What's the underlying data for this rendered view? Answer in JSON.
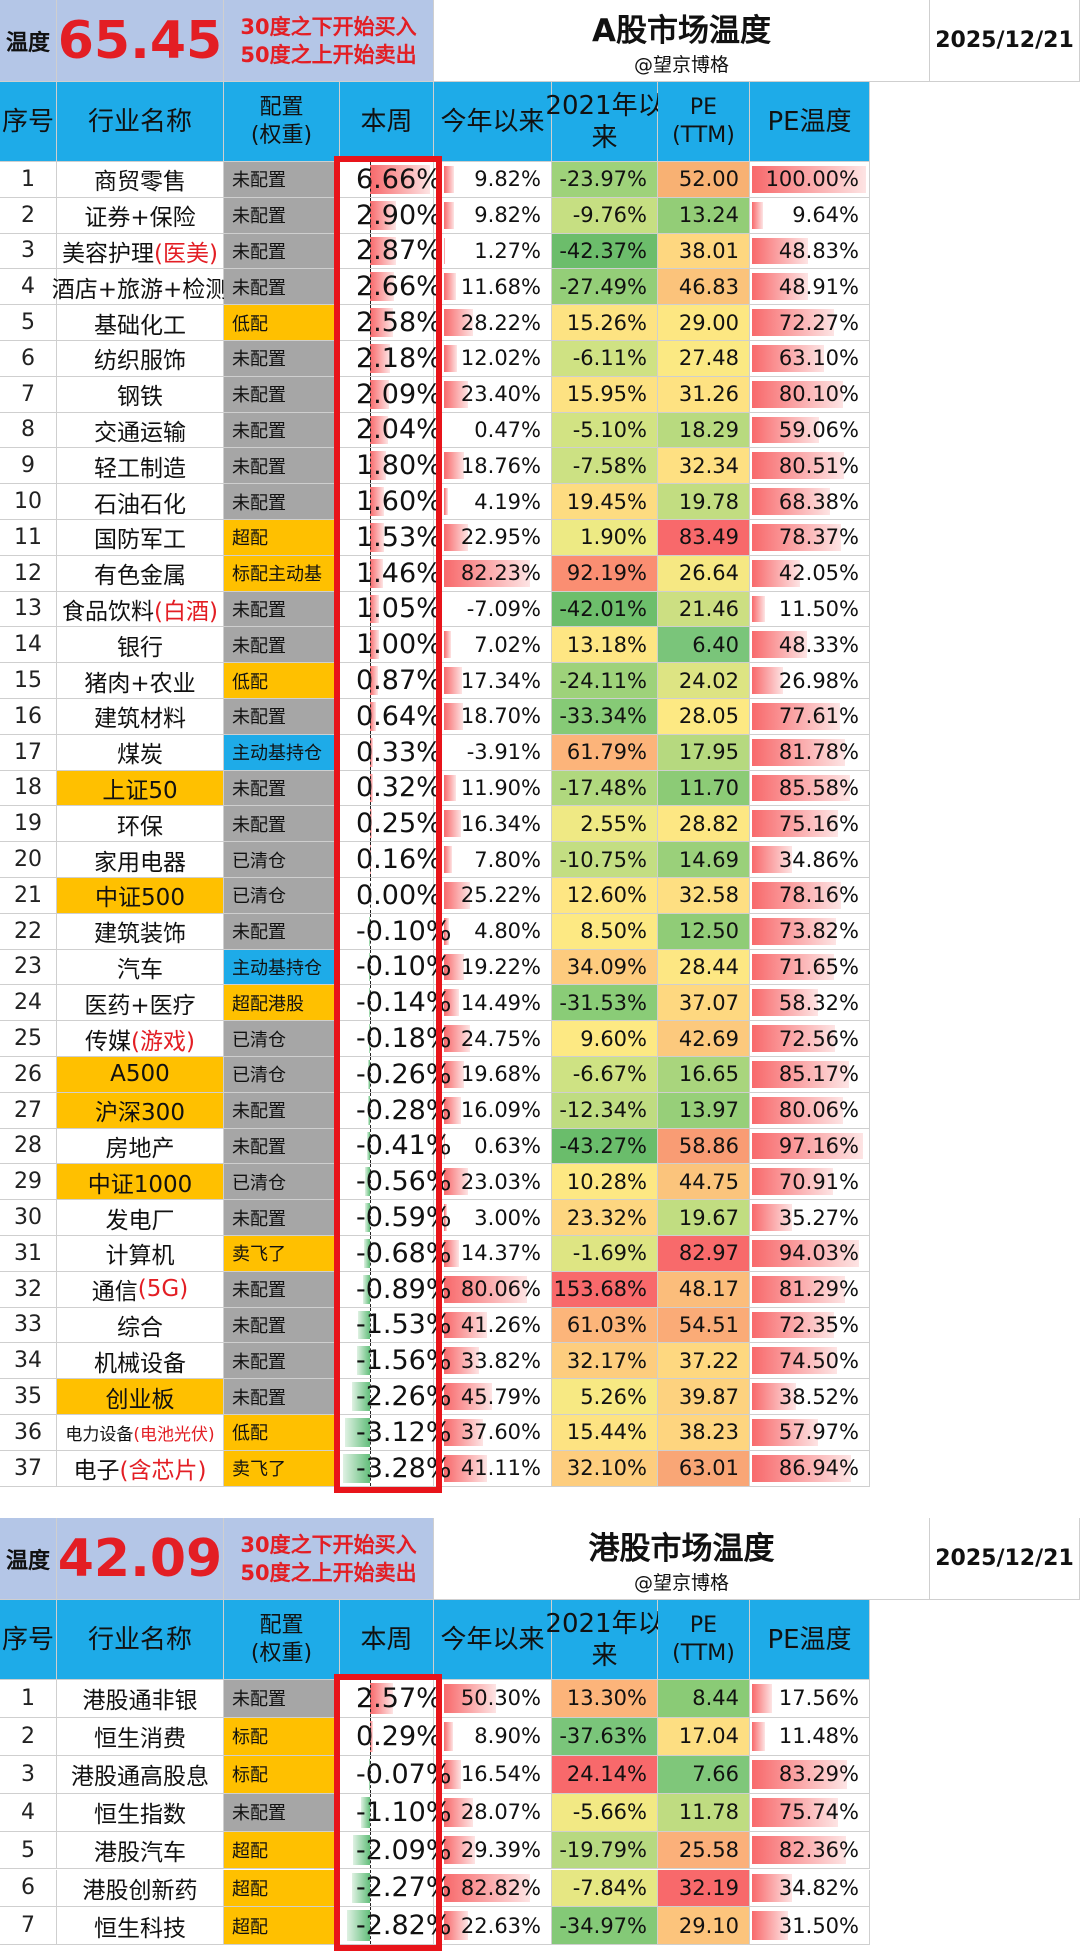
{
  "columns": [
    "序号",
    "行业名称",
    "配置",
    "(权重)",
    "本周",
    "今年以来",
    "2021年以",
    "来",
    "PE",
    "(TTM)",
    "PE温度"
  ],
  "sections": [
    {
      "label": "温度",
      "temperature": "65.45",
      "rule_buy": "30度之下开始买入",
      "rule_sell": "50度之上开始卖出",
      "title": "A股市场温度",
      "author": "@望京博格",
      "date": "2025/12/21",
      "rows": [
        {
          "no": "1",
          "name": "商贸零售",
          "hl": "",
          "alloc": "未配置",
          "ac": "#a6a6a6",
          "week": "6.66%",
          "w": 6.66,
          "ytd": "9.82%",
          "y": 9.82,
          "s2021": "-23.97%",
          "s21c": "#9ed27a",
          "pe": "52.00",
          "pec": "#f8b173",
          "pet": "100.00%",
          "pt": 100
        },
        {
          "no": "2",
          "name": "证券+保险",
          "hl": "",
          "alloc": "未配置",
          "ac": "#a6a6a6",
          "week": "2.90%",
          "w": 2.9,
          "ytd": "9.82%",
          "y": 9.82,
          "s2021": "-9.76%",
          "s21c": "#c6df82",
          "pe": "13.24",
          "pec": "#93cd77",
          "pet": "9.64%",
          "pt": 9.64
        },
        {
          "no": "3",
          "name": "美容护理",
          "hl": "(医美)",
          "alloc": "未配置",
          "ac": "#a6a6a6",
          "week": "2.87%",
          "w": 2.87,
          "ytd": "1.27%",
          "y": 1.27,
          "s2021": "-42.37%",
          "s21c": "#6cbd6b",
          "pe": "38.01",
          "pec": "#fed780",
          "pet": "48.83%",
          "pt": 48.83
        },
        {
          "no": "4",
          "name": "酒店+旅游+检测",
          "hl": "",
          "alloc": "未配置",
          "ac": "#a6a6a6",
          "week": "2.66%",
          "w": 2.66,
          "ytd": "11.68%",
          "y": 11.68,
          "s2021": "-27.49%",
          "s21c": "#94ce78",
          "pe": "46.83",
          "pec": "#fbc37b",
          "pet": "48.91%",
          "pt": 48.91
        },
        {
          "no": "5",
          "name": "基础化工",
          "hl": "",
          "alloc": "低配",
          "ac": "#ffc000",
          "week": "2.58%",
          "w": 2.58,
          "ytd": "28.22%",
          "y": 28.22,
          "s2021": "15.26%",
          "s21c": "#fde382",
          "pe": "29.00",
          "pec": "#fde782",
          "pet": "72.27%",
          "pt": 72.27
        },
        {
          "no": "6",
          "name": "纺织服饰",
          "hl": "",
          "alloc": "未配置",
          "ac": "#a6a6a6",
          "week": "2.18%",
          "w": 2.18,
          "ytd": "12.02%",
          "y": 12.02,
          "s2021": "-6.11%",
          "s21c": "#cfe283",
          "pe": "27.48",
          "pec": "#fbe983",
          "pet": "63.10%",
          "pt": 63.1
        },
        {
          "no": "7",
          "name": "钢铁",
          "hl": "",
          "alloc": "未配置",
          "ac": "#a6a6a6",
          "week": "2.09%",
          "w": 2.09,
          "ytd": "23.40%",
          "y": 23.4,
          "s2021": "15.95%",
          "s21c": "#fde282",
          "pe": "31.26",
          "pec": "#fee282",
          "pet": "80.10%",
          "pt": 80.1
        },
        {
          "no": "8",
          "name": "交通运输",
          "hl": "",
          "alloc": "未配置",
          "ac": "#a6a6a6",
          "week": "2.04%",
          "w": 2.04,
          "ytd": "0.47%",
          "y": 0.47,
          "s2021": "-5.10%",
          "s21c": "#d2e383",
          "pe": "18.29",
          "pec": "#b8da7f",
          "pet": "59.06%",
          "pt": 59.06
        },
        {
          "no": "9",
          "name": "轻工制造",
          "hl": "",
          "alloc": "未配置",
          "ac": "#a6a6a6",
          "week": "1.80%",
          "w": 1.8,
          "ytd": "18.76%",
          "y": 18.76,
          "s2021": "-7.58%",
          "s21c": "#cce183",
          "pe": "32.34",
          "pec": "#fee082",
          "pet": "80.51%",
          "pt": 80.51
        },
        {
          "no": "10",
          "name": "石油石化",
          "hl": "",
          "alloc": "未配置",
          "ac": "#a6a6a6",
          "week": "1.60%",
          "w": 1.6,
          "ytd": "4.19%",
          "y": 4.19,
          "s2021": "19.45%",
          "s21c": "#fddc81",
          "pe": "19.78",
          "pec": "#c2dd81",
          "pet": "68.38%",
          "pt": 68.38
        },
        {
          "no": "11",
          "name": "国防军工",
          "hl": "",
          "alloc": "超配",
          "ac": "#ffc000",
          "week": "1.53%",
          "w": 1.53,
          "ytd": "22.95%",
          "y": 22.95,
          "s2021": "1.90%",
          "s21c": "#edea84",
          "pe": "83.49",
          "pec": "#f8696b",
          "pet": "78.37%",
          "pt": 78.37
        },
        {
          "no": "12",
          "name": "有色金属",
          "hl": "",
          "alloc": "标配主动基",
          "ac": "#ffc000",
          "week": "1.46%",
          "w": 1.46,
          "ytd": "82.23%",
          "y": 82.23,
          "s2021": "92.19%",
          "s21c": "#fa8e72",
          "pe": "26.64",
          "pec": "#f6e883",
          "pet": "42.05%",
          "pt": 42.05
        },
        {
          "no": "13",
          "name": "食品饮料",
          "hl": "(白酒)",
          "alloc": "未配置",
          "ac": "#a6a6a6",
          "week": "1.05%",
          "w": 1.05,
          "ytd": "-7.09%",
          "y": -7.09,
          "s2021": "-42.01%",
          "s21c": "#6dbe6b",
          "pe": "21.46",
          "pec": "#ccdf82",
          "pet": "11.50%",
          "pt": 11.5
        },
        {
          "no": "14",
          "name": "银行",
          "hl": "",
          "alloc": "未配置",
          "ac": "#a6a6a6",
          "week": "1.00%",
          "w": 1.0,
          "ytd": "7.02%",
          "y": 7.02,
          "s2021": "13.18%",
          "s21c": "#fee683",
          "pe": "6.40",
          "pec": "#7ac57a",
          "pet": "48.33%",
          "pt": 48.33
        },
        {
          "no": "15",
          "name": "猪肉+农业",
          "hl": "",
          "alloc": "低配",
          "ac": "#ffc000",
          "week": "0.87%",
          "w": 0.87,
          "ytd": "17.34%",
          "y": 17.34,
          "s2021": "-24.11%",
          "s21c": "#9ed27a",
          "pe": "24.02",
          "pec": "#dde483",
          "pet": "26.98%",
          "pt": 26.98
        },
        {
          "no": "16",
          "name": "建筑材料",
          "hl": "",
          "alloc": "未配置",
          "ac": "#a6a6a6",
          "week": "0.64%",
          "w": 0.64,
          "ytd": "18.70%",
          "y": 18.7,
          "s2021": "-33.34%",
          "s21c": "#86ca76",
          "pe": "28.05",
          "pec": "#fde983",
          "pet": "77.61%",
          "pt": 77.61
        },
        {
          "no": "17",
          "name": "煤炭",
          "hl": "",
          "alloc": "主动基持仓",
          "ac": "#1eabe8",
          "week": "0.33%",
          "w": 0.33,
          "ytd": "-3.91%",
          "y": -3.91,
          "s2021": "61.79%",
          "s21c": "#fcb47a",
          "pe": "17.95",
          "pec": "#b6d97f",
          "pet": "81.78%",
          "pt": 81.78
        },
        {
          "no": "18",
          "name": "上证50",
          "hl": "",
          "alloc": "未配置",
          "ac": "#a6a6a6",
          "week": "0.32%",
          "w": 0.32,
          "ytd": "11.90%",
          "y": 11.9,
          "s2021": "-17.48%",
          "s21c": "#b0d87e",
          "pe": "11.70",
          "pec": "#8ccb76",
          "pet": "85.58%",
          "pt": 85.58,
          "hlname": true
        },
        {
          "no": "19",
          "name": "环保",
          "hl": "",
          "alloc": "未配置",
          "ac": "#a6a6a6",
          "week": "0.25%",
          "w": 0.25,
          "ytd": "16.34%",
          "y": 16.34,
          "s2021": "2.55%",
          "s21c": "#efe984",
          "pe": "28.82",
          "pec": "#fde783",
          "pet": "75.16%",
          "pt": 75.16
        },
        {
          "no": "20",
          "name": "家用电器",
          "hl": "",
          "alloc": "已清仓",
          "ac": "#a6a6a6",
          "week": "0.16%",
          "w": 0.16,
          "ytd": "7.80%",
          "y": 7.8,
          "s2021": "-10.75%",
          "s21c": "#c3de82",
          "pe": "14.69",
          "pec": "#9ad07a",
          "pet": "34.86%",
          "pt": 34.86
        },
        {
          "no": "21",
          "name": "中证500",
          "hl": "",
          "alloc": "已清仓",
          "ac": "#a6a6a6",
          "week": "0.00%",
          "w": 0.0,
          "ytd": "25.22%",
          "y": 25.22,
          "s2021": "12.60%",
          "s21c": "#fee683",
          "pe": "32.58",
          "pec": "#fedf82",
          "pet": "78.16%",
          "pt": 78.16,
          "hlname": true
        },
        {
          "no": "22",
          "name": "建筑装饰",
          "hl": "",
          "alloc": "未配置",
          "ac": "#a6a6a6",
          "week": "-0.10%",
          "w": -0.1,
          "ytd": "4.80%",
          "y": 4.8,
          "s2021": "8.50%",
          "s21c": "#fde983",
          "pe": "12.50",
          "pec": "#90cc77",
          "pet": "73.82%",
          "pt": 73.82
        },
        {
          "no": "23",
          "name": "汽车",
          "hl": "",
          "alloc": "主动基持仓",
          "ac": "#1eabe8",
          "week": "-0.10%",
          "w": -0.1,
          "ytd": "19.22%",
          "y": 19.22,
          "s2021": "34.09%",
          "s21c": "#fdcb7e",
          "pe": "28.44",
          "pec": "#fde783",
          "pet": "71.65%",
          "pt": 71.65
        },
        {
          "no": "24",
          "name": "医药+医疗",
          "hl": "",
          "alloc": "超配港股",
          "ac": "#ffc000",
          "week": "-0.14%",
          "w": -0.14,
          "ytd": "14.49%",
          "y": 14.49,
          "s2021": "-31.53%",
          "s21c": "#8acc77",
          "pe": "37.07",
          "pec": "#fed880",
          "pet": "58.32%",
          "pt": 58.32
        },
        {
          "no": "25",
          "name": "传媒",
          "hl": "(游戏)",
          "alloc": "已清仓",
          "ac": "#a6a6a6",
          "week": "-0.18%",
          "w": -0.18,
          "ytd": "24.75%",
          "y": 24.75,
          "s2021": "9.60%",
          "s21c": "#fde983",
          "pe": "42.69",
          "pec": "#fcc97d",
          "pet": "72.56%",
          "pt": 72.56
        },
        {
          "no": "26",
          "name": "A500",
          "hl": "",
          "alloc": "已清仓",
          "ac": "#a6a6a6",
          "week": "-0.26%",
          "w": -0.26,
          "ytd": "19.68%",
          "y": 19.68,
          "s2021": "-6.67%",
          "s21c": "#cee283",
          "pe": "16.65",
          "pec": "#a9d57d",
          "pet": "85.17%",
          "pt": 85.17,
          "hlname": true
        },
        {
          "no": "27",
          "name": "沪深300",
          "hl": "",
          "alloc": "未配置",
          "ac": "#a6a6a6",
          "week": "-0.28%",
          "w": -0.28,
          "ytd": "16.09%",
          "y": 16.09,
          "s2021": "-12.34%",
          "s21c": "#bfdc81",
          "pe": "13.97",
          "pec": "#97cf79",
          "pet": "80.06%",
          "pt": 80.06,
          "hlname": true
        },
        {
          "no": "28",
          "name": "房地产",
          "hl": "",
          "alloc": "未配置",
          "ac": "#a6a6a6",
          "week": "-0.41%",
          "w": -0.41,
          "ytd": "0.63%",
          "y": 0.63,
          "s2021": "-43.27%",
          "s21c": "#6abd6b",
          "pe": "58.86",
          "pec": "#f99c74",
          "pet": "97.16%",
          "pt": 97.16
        },
        {
          "no": "29",
          "name": "中证1000",
          "hl": "",
          "alloc": "已清仓",
          "ac": "#a6a6a6",
          "week": "-0.56%",
          "w": -0.56,
          "ytd": "23.03%",
          "y": 23.03,
          "s2021": "10.28%",
          "s21c": "#fde883",
          "pe": "44.75",
          "pec": "#fbc47c",
          "pet": "70.91%",
          "pt": 70.91,
          "hlname": true
        },
        {
          "no": "30",
          "name": "发电厂",
          "hl": "",
          "alloc": "未配置",
          "ac": "#a6a6a6",
          "week": "-0.59%",
          "w": -0.59,
          "ytd": "3.00%",
          "y": 3.0,
          "s2021": "23.32%",
          "s21c": "#fdd680",
          "pe": "19.67",
          "pec": "#c1dd81",
          "pet": "35.27%",
          "pt": 35.27
        },
        {
          "no": "31",
          "name": "计算机",
          "hl": "",
          "alloc": "卖飞了",
          "ac": "#ffc000",
          "week": "-0.68%",
          "w": -0.68,
          "ytd": "14.37%",
          "y": 14.37,
          "s2021": "-1.69%",
          "s21c": "#dee583",
          "pe": "82.97",
          "pec": "#f86a6b",
          "pet": "94.03%",
          "pt": 94.03
        },
        {
          "no": "32",
          "name": "通信",
          "hl": "(5G)",
          "alloc": "未配置",
          "ac": "#a6a6a6",
          "week": "-0.89%",
          "w": -0.89,
          "ytd": "80.06%",
          "y": 80.06,
          "s2021": "153.68%",
          "s21c": "#f8696b",
          "pe": "48.17",
          "pec": "#fbbd7b",
          "pet": "81.29%",
          "pt": 81.29
        },
        {
          "no": "33",
          "name": "综合",
          "hl": "",
          "alloc": "未配置",
          "ac": "#a6a6a6",
          "week": "-1.53%",
          "w": -1.53,
          "ytd": "41.26%",
          "y": 41.26,
          "s2021": "61.03%",
          "s21c": "#fcb57a",
          "pe": "54.51",
          "pec": "#faab77",
          "pet": "72.35%",
          "pt": 72.35
        },
        {
          "no": "34",
          "name": "机械设备",
          "hl": "",
          "alloc": "未配置",
          "ac": "#a6a6a6",
          "week": "-1.56%",
          "w": -1.56,
          "ytd": "33.82%",
          "y": 33.82,
          "s2021": "32.17%",
          "s21c": "#fdcd7e",
          "pe": "37.22",
          "pec": "#fed880",
          "pet": "74.50%",
          "pt": 74.5
        },
        {
          "no": "35",
          "name": "创业板",
          "hl": "",
          "alloc": "未配置",
          "ac": "#a6a6a6",
          "week": "-2.26%",
          "w": -2.26,
          "ytd": "45.79%",
          "y": 45.79,
          "s2021": "5.26%",
          "s21c": "#f7e983",
          "pe": "39.87",
          "pec": "#fdd27f",
          "pet": "38.52%",
          "pt": 38.52,
          "hlname": true
        },
        {
          "no": "36",
          "name": "电力设备",
          "hl": "(电池光伏)",
          "alloc": "低配",
          "ac": "#ffc000",
          "week": "-3.12%",
          "w": -3.12,
          "ytd": "37.60%",
          "y": 37.6,
          "s2021": "15.44%",
          "s21c": "#fde382",
          "pe": "38.23",
          "pec": "#fed57f",
          "pet": "57.97%",
          "pt": 57.97,
          "small": true
        },
        {
          "no": "37",
          "name": "电子",
          "hl": "(含芯片)",
          "alloc": "卖飞了",
          "ac": "#ffc000",
          "week": "-3.28%",
          "w": -3.28,
          "ytd": "41.11%",
          "y": 41.11,
          "s2021": "32.10%",
          "s21c": "#fdcd7e",
          "pe": "63.01",
          "pec": "#f9a676",
          "pet": "86.94%",
          "pt": 86.94
        }
      ]
    },
    {
      "label": "温度",
      "temperature": "42.09",
      "rule_buy": "30度之下开始买入",
      "rule_sell": "50度之上开始卖出",
      "title": "港股市场温度",
      "author": "@望京博格",
      "date": "2025/12/21",
      "rows": [
        {
          "no": "1",
          "name": "港股通非银",
          "hl": "",
          "alloc": "未配置",
          "ac": "#a6a6a6",
          "week": "2.57%",
          "w": 2.57,
          "ytd": "50.30%",
          "y": 50.3,
          "s2021": "13.30%",
          "s21c": "#fcb47a",
          "pe": "8.44",
          "pec": "#8acb76",
          "pet": "17.56%",
          "pt": 17.56
        },
        {
          "no": "2",
          "name": "恒生消费",
          "hl": "",
          "alloc": "标配",
          "ac": "#ffc000",
          "week": "0.29%",
          "w": 0.29,
          "ytd": "8.90%",
          "y": 8.9,
          "s2021": "-37.63%",
          "s21c": "#7ac57a",
          "pe": "17.04",
          "pec": "#fdde82",
          "pet": "11.48%",
          "pt": 11.48
        },
        {
          "no": "3",
          "name": "港股通高股息",
          "hl": "",
          "alloc": "标配",
          "ac": "#ffc000",
          "week": "-0.07%",
          "w": -0.07,
          "ytd": "16.54%",
          "y": 16.54,
          "s2021": "24.14%",
          "s21c": "#f8696b",
          "pe": "7.66",
          "pec": "#7fc77a",
          "pet": "83.29%",
          "pt": 83.29
        },
        {
          "no": "4",
          "name": "恒生指数",
          "hl": "",
          "alloc": "未配置",
          "ac": "#a6a6a6",
          "week": "-1.10%",
          "w": -1.1,
          "ytd": "28.07%",
          "y": 28.07,
          "s2021": "-5.66%",
          "s21c": "#f2e984",
          "pe": "11.78",
          "pec": "#bfdc81",
          "pet": "75.74%",
          "pt": 75.74
        },
        {
          "no": "5",
          "name": "港股汽车",
          "hl": "",
          "alloc": "超配",
          "ac": "#ffc000",
          "week": "-2.09%",
          "w": -2.09,
          "ytd": "29.39%",
          "y": 29.39,
          "s2021": "-19.79%",
          "s21c": "#b7d980",
          "pe": "25.58",
          "pec": "#fbb07a",
          "pet": "82.36%",
          "pt": 82.36
        },
        {
          "no": "6",
          "name": "港股创新药",
          "hl": "",
          "alloc": "超配",
          "ac": "#ffc000",
          "week": "-2.27%",
          "w": -2.27,
          "ytd": "82.82%",
          "y": 82.82,
          "s2021": "-7.84%",
          "s21c": "#e6e783",
          "pe": "32.19",
          "pec": "#f8696b",
          "pet": "34.82%",
          "pt": 34.82
        },
        {
          "no": "7",
          "name": "恒生科技",
          "hl": "",
          "alloc": "超配",
          "ac": "#ffc000",
          "week": "-2.82%",
          "w": -2.82,
          "ytd": "22.63%",
          "y": 22.63,
          "s2021": "-34.97%",
          "s21c": "#84c977",
          "pe": "29.10",
          "pec": "#fcc47c",
          "pet": "31.50%",
          "pt": 31.5
        }
      ]
    }
  ]
}
